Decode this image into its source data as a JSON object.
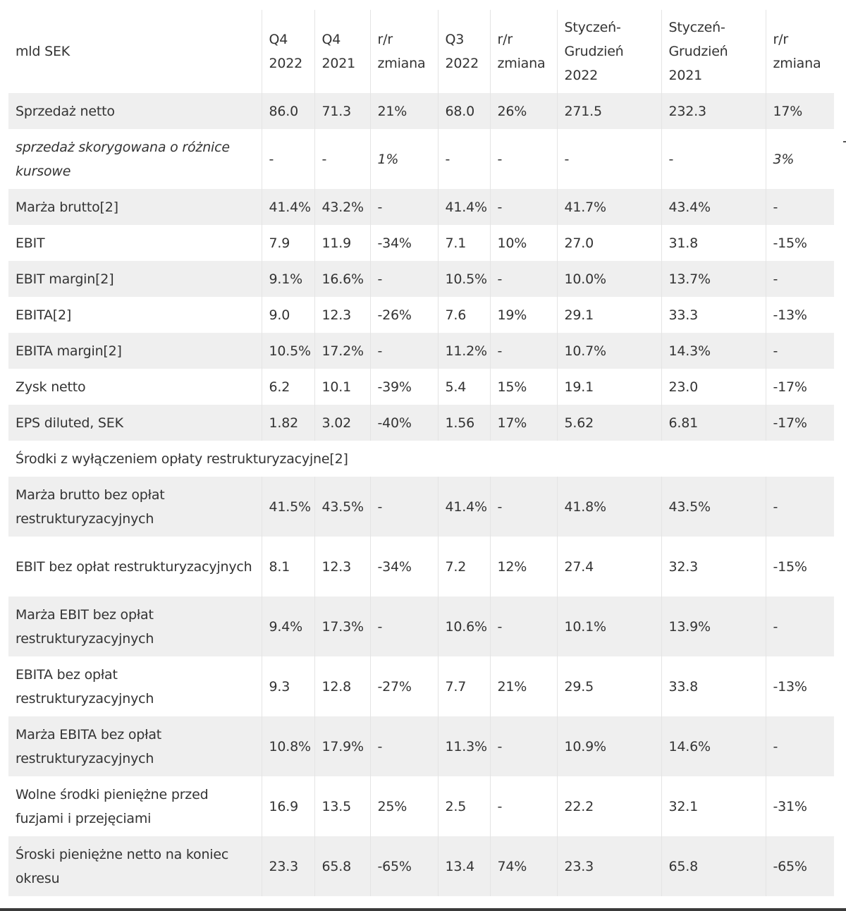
{
  "header": [
    "mld SEK",
    "Q4 2022",
    "Q4 2021",
    "r/r zmiana",
    "Q3 2022",
    "r/r zmiana",
    "Styczeń-Grudzień 2022",
    "Styczeń-Grudzień 2021",
    "r/r zmiana"
  ],
  "rows": [
    {
      "label": "Sprzedaż netto",
      "cells": [
        "86.0",
        "71.3",
        "21%",
        "68.0",
        "26%",
        "271.5",
        "232.3",
        "17%"
      ]
    },
    {
      "label": "sprzedaż skorygowana o różnice kursowe",
      "cells": [
        "-",
        "-",
        "1%",
        "-",
        "-",
        "-",
        "-",
        "3%"
      ],
      "italic": true
    },
    {
      "label": "Marża brutto[2]",
      "cells": [
        "41.4%",
        "43.2%",
        "-",
        "41.4%",
        "-",
        "41.7%",
        "43.4%",
        "-"
      ]
    },
    {
      "label": "EBIT",
      "cells": [
        "7.9",
        "11.9",
        "-34%",
        "7.1",
        "10%",
        "27.0",
        "31.8",
        "-15%"
      ]
    },
    {
      "label": "EBIT margin[2]",
      "cells": [
        "9.1%",
        "16.6%",
        "-",
        "10.5%",
        "-",
        "10.0%",
        "13.7%",
        "-"
      ]
    },
    {
      "label": "EBITA[2]",
      "cells": [
        "9.0",
        "12.3",
        "-26%",
        "7.6",
        "19%",
        "29.1",
        "33.3",
        "-13%"
      ]
    },
    {
      "label": "EBITA margin[2]",
      "cells": [
        "10.5%",
        "17.2%",
        "-",
        "11.2%",
        "-",
        "10.7%",
        "14.3%",
        "-"
      ]
    },
    {
      "label": "Zysk netto",
      "cells": [
        "6.2",
        "10.1",
        "-39%",
        "5.4",
        "15%",
        "19.1",
        "23.0",
        "-17%"
      ]
    },
    {
      "label": "EPS diluted, SEK",
      "cells": [
        "1.82",
        "3.02",
        "-40%",
        "1.56",
        "17%",
        "5.62",
        "6.81",
        "-17%"
      ]
    },
    {
      "label": "Środki z wyłączeniem opłaty restrukturyzacyjne[2]",
      "span": true
    },
    {
      "label": "Marża brutto bez opłat restrukturyzacyjnych",
      "cells": [
        "41.5%",
        "43.5%",
        "-",
        "41.4%",
        "-",
        "41.8%",
        "43.5%",
        "-"
      ]
    },
    {
      "label": "EBIT bez opłat restrukturyzacyjnych",
      "cells": [
        "8.1",
        "12.3",
        "-34%",
        "7.2",
        "12%",
        "27.4",
        "32.3",
        "-15%"
      ]
    },
    {
      "label": "Marża EBIT bez opłat restrukturyzacyjnych",
      "cells": [
        "9.4%",
        "17.3%",
        "-",
        "10.6%",
        "-",
        "10.1%",
        "13.9%",
        "-"
      ]
    },
    {
      "label": "EBITA bez opłat restrukturyzacyjnych",
      "cells": [
        "9.3",
        "12.8",
        "-27%",
        "7.7",
        "21%",
        "29.5",
        "33.8",
        "-13%"
      ]
    },
    {
      "label": "Marża EBITA bez opłat restrukturyzacyjnych",
      "cells": [
        "10.8%",
        "17.9%",
        "-",
        "11.3%",
        "-",
        "10.9%",
        "14.6%",
        "-"
      ]
    },
    {
      "label": "Wolne środki pieniężne przed fuzjami i przejęciami",
      "cells": [
        "16.9",
        "13.5",
        "25%",
        "2.5",
        "-",
        "22.2",
        "32.1",
        "-31%"
      ]
    },
    {
      "label": "Śroski pieniężne netto na koniec okresu",
      "cells": [
        "23.3",
        "65.8",
        "-65%",
        "13.4",
        "74%",
        "23.3",
        "65.8",
        "-65%"
      ]
    }
  ]
}
